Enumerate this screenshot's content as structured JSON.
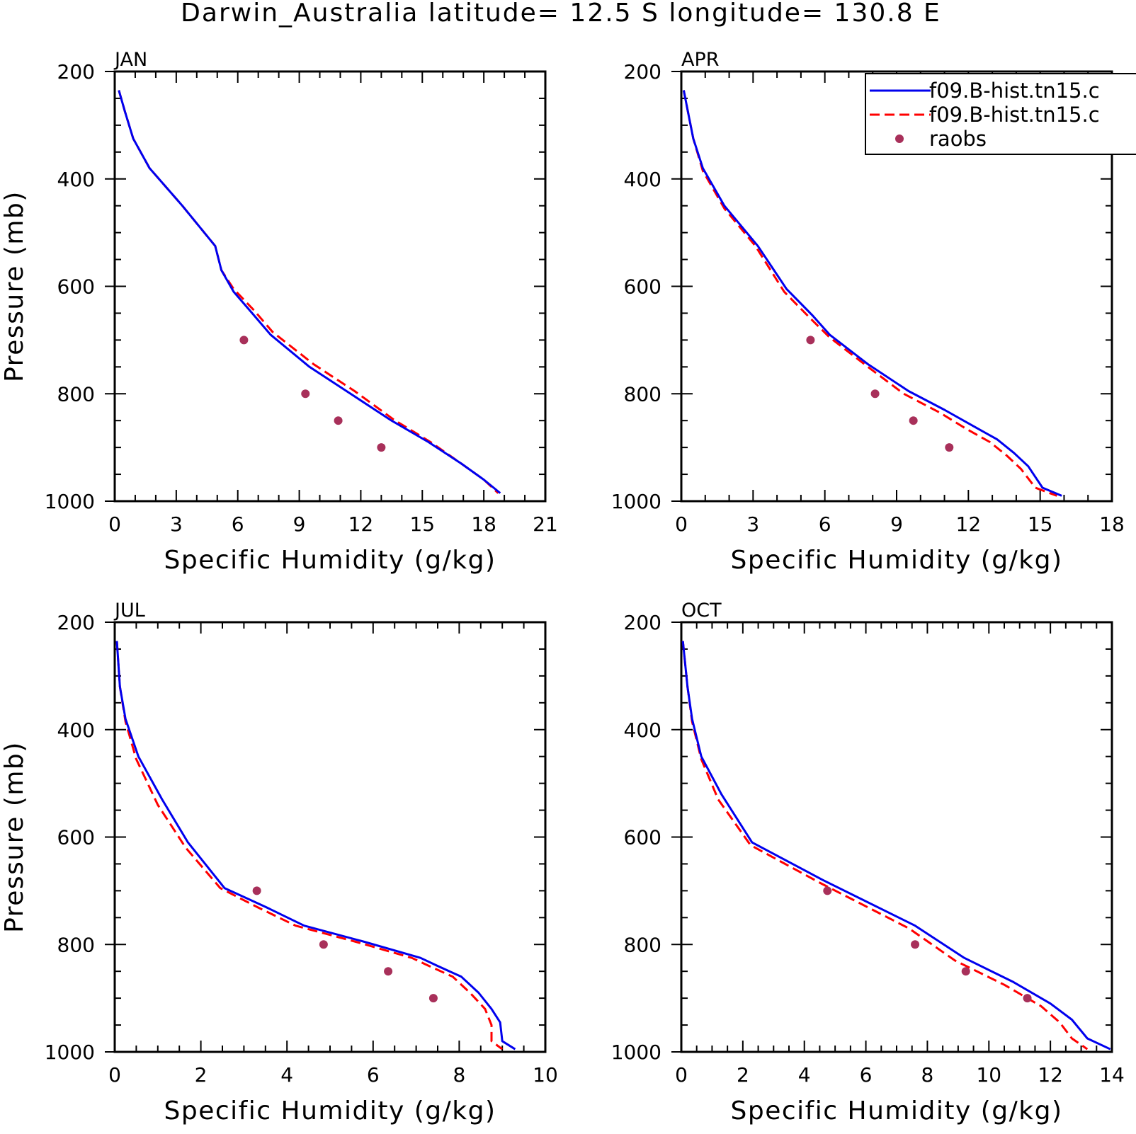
{
  "figure": {
    "title": "Darwin_Australia  latitude= 12.5 S longitude= 130.8 E"
  },
  "colors": {
    "model_1": "#0000ee",
    "model_2": "#ff0000",
    "raobs": "#a8305a",
    "axes": "#000000"
  },
  "legend": {
    "placement": "top-right of APR panel",
    "entries": [
      {
        "label": "f09.B-hist.tn15.c",
        "style": "solid",
        "color": "#0000ee"
      },
      {
        "label": "f09.B-hist.tn15.c",
        "style": "dashed",
        "color": "#ff0000"
      },
      {
        "label": "raobs",
        "style": "marker",
        "color": "#a8305a"
      }
    ]
  },
  "chart_data": [
    {
      "type": "line",
      "title": "JAN",
      "xlabel": "Specific Humidity (g/kg)",
      "ylabel": "Pressure (mb)",
      "xlim": [
        0,
        21
      ],
      "xticks": [
        0,
        3,
        6,
        9,
        12,
        15,
        18,
        21
      ],
      "ylim": [
        200,
        1000
      ],
      "y_inverted": true,
      "yticks": [
        200,
        400,
        600,
        800,
        1000
      ],
      "grid": false,
      "series": [
        {
          "style": "solid",
          "color": "#0000ee",
          "x": [
            0.2,
            0.5,
            0.9,
            1.7,
            3.3,
            4.9,
            5.2,
            5.8,
            6.7,
            7.6,
            9.5,
            11.5,
            13.5,
            15.3,
            16.9,
            18.0,
            18.8
          ],
          "y": [
            235,
            275,
            325,
            380,
            450,
            525,
            570,
            610,
            650,
            690,
            750,
            800,
            850,
            890,
            930,
            960,
            985
          ]
        },
        {
          "style": "dashed",
          "color": "#ff0000",
          "x": [
            0.2,
            0.5,
            0.9,
            1.7,
            3.3,
            4.9,
            5.2,
            5.8,
            6.8,
            7.7,
            9.7,
            11.7,
            13.6,
            15.4,
            16.9,
            18.0,
            18.7
          ],
          "y": [
            235,
            275,
            325,
            380,
            450,
            525,
            570,
            605,
            645,
            685,
            745,
            795,
            848,
            890,
            930,
            960,
            985
          ]
        },
        {
          "style": "marker",
          "color": "#a8305a",
          "x": [
            6.3,
            9.3,
            10.9,
            13.0
          ],
          "y": [
            700,
            800,
            850,
            900
          ]
        }
      ]
    },
    {
      "type": "line",
      "title": "APR",
      "xlabel": "Specific Humidity (g/kg)",
      "ylabel": "",
      "xlim": [
        0,
        18
      ],
      "xticks": [
        0,
        3,
        6,
        9,
        12,
        15,
        18
      ],
      "ylim": [
        200,
        1000
      ],
      "y_inverted": true,
      "yticks": [
        200,
        400,
        600,
        800,
        1000
      ],
      "grid": false,
      "series": [
        {
          "style": "solid",
          "color": "#0000ee",
          "x": [
            0.1,
            0.3,
            0.5,
            0.9,
            1.8,
            3.2,
            4.4,
            5.5,
            6.2,
            7.8,
            9.5,
            11.0,
            12.2,
            13.2,
            13.9,
            14.5,
            15.1,
            15.9
          ],
          "y": [
            235,
            280,
            325,
            380,
            450,
            525,
            605,
            655,
            690,
            745,
            795,
            830,
            860,
            885,
            910,
            935,
            975,
            990
          ]
        },
        {
          "style": "dashed",
          "color": "#ff0000",
          "x": [
            0.1,
            0.3,
            0.5,
            0.9,
            1.8,
            3.1,
            4.3,
            5.4,
            6.2,
            7.8,
            9.3,
            10.8,
            11.9,
            12.9,
            13.6,
            14.2,
            14.8,
            15.7
          ],
          "y": [
            235,
            280,
            325,
            385,
            455,
            525,
            610,
            660,
            695,
            750,
            800,
            835,
            865,
            890,
            915,
            940,
            975,
            990
          ]
        },
        {
          "style": "marker",
          "color": "#a8305a",
          "x": [
            5.4,
            8.1,
            9.7,
            11.2
          ],
          "y": [
            700,
            800,
            850,
            900
          ]
        }
      ]
    },
    {
      "type": "line",
      "title": "JUL",
      "xlabel": "Specific Humidity (g/kg)",
      "ylabel": "Pressure (mb)",
      "xlim": [
        0,
        10
      ],
      "xticks": [
        0,
        2,
        4,
        6,
        8,
        10
      ],
      "ylim": [
        200,
        1000
      ],
      "y_inverted": true,
      "yticks": [
        200,
        400,
        600,
        800,
        1000
      ],
      "grid": false,
      "series": [
        {
          "style": "solid",
          "color": "#0000ee",
          "x": [
            0.05,
            0.12,
            0.25,
            0.55,
            1.1,
            1.7,
            2.55,
            3.5,
            4.4,
            5.8,
            7.1,
            7.5,
            8.05,
            8.45,
            8.75,
            8.95,
            9.0,
            9.3
          ],
          "y": [
            235,
            320,
            380,
            450,
            530,
            610,
            695,
            730,
            765,
            795,
            825,
            840,
            860,
            890,
            920,
            945,
            980,
            995
          ]
        },
        {
          "style": "dashed",
          "color": "#ff0000",
          "x": [
            0.05,
            0.12,
            0.25,
            0.5,
            1.0,
            1.65,
            2.45,
            3.3,
            4.2,
            5.6,
            6.9,
            7.3,
            7.85,
            8.25,
            8.6,
            8.75,
            8.75,
            9.0
          ],
          "y": [
            235,
            320,
            385,
            455,
            540,
            620,
            695,
            730,
            765,
            795,
            825,
            840,
            860,
            890,
            920,
            950,
            980,
            995
          ]
        },
        {
          "style": "marker",
          "color": "#a8305a",
          "x": [
            3.3,
            4.85,
            6.35,
            7.4
          ],
          "y": [
            700,
            800,
            850,
            900
          ]
        }
      ]
    },
    {
      "type": "line",
      "title": "OCT",
      "xlabel": "Specific Humidity (g/kg)",
      "ylabel": "",
      "xlim": [
        0,
        14
      ],
      "xticks": [
        0,
        2,
        4,
        6,
        8,
        10,
        12,
        14
      ],
      "ylim": [
        200,
        1000
      ],
      "y_inverted": true,
      "yticks": [
        200,
        400,
        600,
        800,
        1000
      ],
      "grid": false,
      "series": [
        {
          "style": "solid",
          "color": "#0000ee",
          "x": [
            0.05,
            0.2,
            0.35,
            0.65,
            1.3,
            2.3,
            4.6,
            7.6,
            9.2,
            10.8,
            12.0,
            12.7,
            13.2,
            13.95
          ],
          "y": [
            235,
            320,
            380,
            450,
            520,
            610,
            680,
            765,
            825,
            870,
            910,
            940,
            975,
            995
          ]
        },
        {
          "style": "dashed",
          "color": "#ff0000",
          "x": [
            0.05,
            0.2,
            0.35,
            0.65,
            1.2,
            2.25,
            4.5,
            7.4,
            8.9,
            10.5,
            11.7,
            12.3,
            12.7,
            13.2
          ],
          "y": [
            235,
            320,
            385,
            455,
            530,
            615,
            685,
            770,
            830,
            875,
            915,
            945,
            975,
            995
          ]
        },
        {
          "style": "marker",
          "color": "#a8305a",
          "x": [
            4.75,
            7.6,
            9.25,
            11.25
          ],
          "y": [
            700,
            800,
            850,
            900
          ]
        }
      ]
    }
  ]
}
